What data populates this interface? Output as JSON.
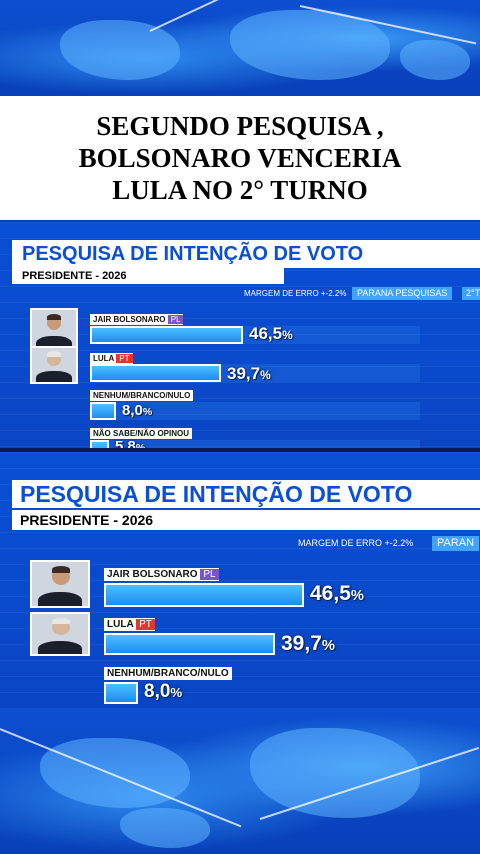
{
  "headline": {
    "lines": [
      "SEGUNDO PESQUISA ,",
      "BOLSONARO VENCERIA",
      "LULA NO 2° TURNO"
    ]
  },
  "poll": {
    "title": "PESQUISA DE INTENÇÃO DE VOTO",
    "subtitle": "PRESIDENTE - 2026",
    "margin": "MARGEM DE ERRO +-2.2%",
    "source_panel1": "PARANA PESQUISAS",
    "source_panel1_extra": "2°T",
    "source_panel2": "PARAN",
    "candidates": [
      {
        "name": "JAIR BOLSONARO",
        "party": "PL",
        "value_text": "46,5",
        "pct": "%",
        "value": 46.5
      },
      {
        "name": "LULA",
        "party": "PT",
        "value_text": "39,7",
        "pct": "%",
        "value": 39.7
      }
    ],
    "other": [
      {
        "name": "NENHUM/BRANCO/NULO",
        "value_text": "8,0",
        "pct": "%",
        "value": 8.0
      },
      {
        "name": "NÃO SABE/NÃO OPINOU",
        "value_text": "5,8",
        "pct": "%",
        "value": 5.8
      }
    ]
  },
  "colors": {
    "background": "#0a4fd6",
    "bar": "#1e8cf0",
    "party_pl": "#7a55c8",
    "party_pt": "#e2352d"
  }
}
